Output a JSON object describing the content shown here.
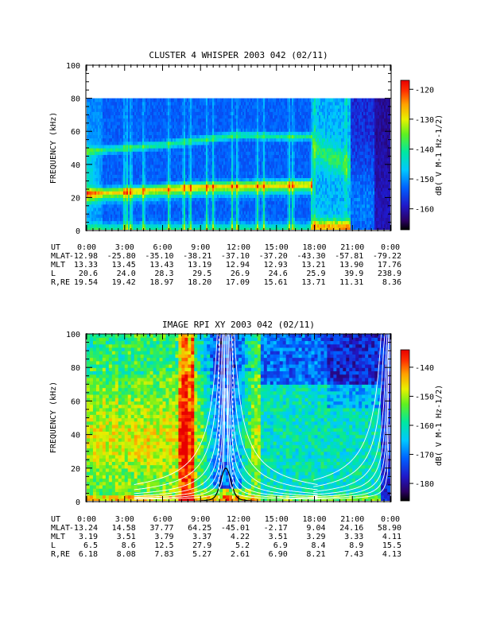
{
  "chart_data": [
    {
      "type": "heatmap",
      "title": "CLUSTER 4 WHISPER 2003 042 (02/11)",
      "ylabel": "FREQUENCY (kHz)",
      "ylim": [
        0,
        100
      ],
      "y_ticks": [
        "0",
        "20",
        "40",
        "60",
        "80",
        "100"
      ],
      "data_ceiling_khz": 80,
      "x_ticks": [
        "0:00",
        "3:00",
        "6:00",
        "9:00",
        "12:00",
        "15:00",
        "18:00",
        "21:00",
        "0:00"
      ],
      "colorbar": {
        "label": "dB( V M-1 Hz-1/2)",
        "ticks": [
          "-120",
          "-130",
          "-140",
          "-150",
          "-160"
        ],
        "range": [
          -167,
          -117
        ]
      },
      "ephemeris": {
        "labels": [
          "UT",
          "MLAT",
          "MLT",
          "L",
          "R,RE"
        ],
        "rows": [
          [
            "",
            "-12.98",
            "-25.80",
            "-35.10",
            "-38.21",
            "-37.10",
            "-37.20",
            "-43.30",
            "-57.81",
            "-79.22"
          ],
          [
            "",
            "13.33",
            "13.45",
            "13.43",
            "13.19",
            "12.94",
            "12.93",
            "13.21",
            "13.90",
            "17.76"
          ],
          [
            "",
            "20.6",
            "24.0",
            "28.3",
            "29.5",
            "26.9",
            "24.6",
            "25.9",
            "39.9",
            "238.9"
          ],
          [
            "",
            "19.54",
            "19.42",
            "18.97",
            "18.20",
            "17.09",
            "15.61",
            "13.71",
            "11.31",
            "8.36"
          ]
        ]
      },
      "features": {
        "main_band": {
          "hours": [
            0,
            3,
            6,
            9,
            12,
            15,
            17.8
          ],
          "khz": [
            23,
            24,
            25.5,
            27,
            27.5,
            28,
            28.5
          ]
        },
        "upper_band": {
          "hours": [
            0,
            3,
            6,
            9,
            12,
            15,
            17.8
          ],
          "khz": [
            48,
            50,
            52,
            55,
            58,
            57,
            57
          ]
        },
        "spikes_hours": [
          3.0,
          3.2,
          3.5,
          4.5,
          6.5,
          7.7,
          8.2,
          9.5,
          10.0,
          11.5,
          11.9,
          13.5,
          14.0,
          16.0,
          16.3,
          17.8,
          18.0,
          20.5
        ]
      }
    },
    {
      "type": "heatmap",
      "title": "IMAGE RPI XY 2003 042 (02/11)",
      "ylabel": "FREQUENCY (kHz)",
      "ylim": [
        0,
        100
      ],
      "y_ticks": [
        "0",
        "20",
        "40",
        "60",
        "80",
        "100"
      ],
      "x_ticks": [
        "0:00",
        "3:00",
        "6:00",
        "9:00",
        "12:00",
        "15:00",
        "18:00",
        "21:00",
        "0:00"
      ],
      "colorbar": {
        "label": "dB( V M-1 Hz-1/2)",
        "ticks": [
          "-140",
          "-150",
          "-160",
          "-170",
          "-180"
        ],
        "range": [
          -186,
          -134
        ]
      },
      "ephemeris": {
        "labels": [
          "UT",
          "MLAT",
          "MLT",
          "L",
          "R,RE"
        ],
        "rows": [
          [
            "",
            "-13.24",
            "14.58",
            "37.77",
            "64.25",
            "-45.01",
            "-2.17",
            "9.04",
            "24.16",
            "58.90"
          ],
          [
            "",
            "3.19",
            "3.51",
            "3.79",
            "3.37",
            "4.22",
            "3.51",
            "3.29",
            "3.33",
            "4.11"
          ],
          [
            "",
            "6.5",
            "8.6",
            "12.5",
            "27.9",
            "5.2",
            "6.9",
            "8.4",
            "8.9",
            "15.5"
          ],
          [
            "",
            "6.18",
            "8.08",
            "7.83",
            "5.27",
            "2.61",
            "6.90",
            "8.21",
            "7.43",
            "4.13"
          ]
        ]
      },
      "features": {
        "perigee_hour": 11,
        "vertical_stripes_hours": [
          7.5,
          7.9,
          8.3,
          11.0
        ]
      }
    }
  ]
}
